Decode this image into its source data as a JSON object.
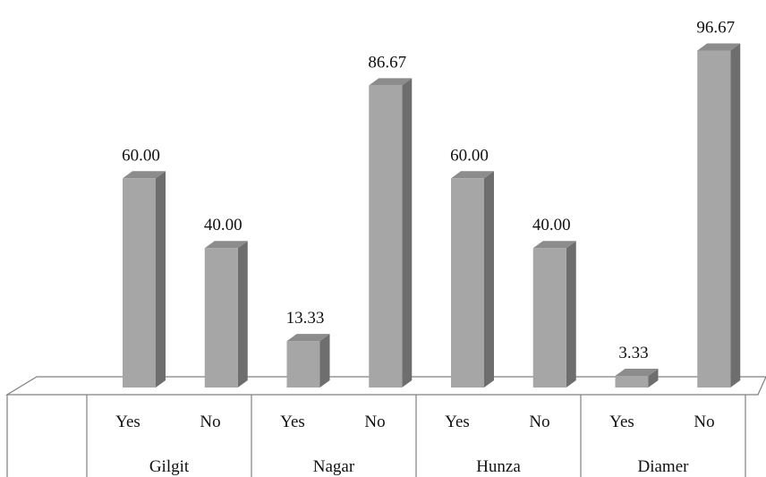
{
  "chart_data": {
    "type": "bar",
    "style": "3d-column",
    "groups": [
      {
        "name": "Gilgit",
        "categories": [
          "Yes",
          "No"
        ],
        "values": [
          60.0,
          40.0
        ]
      },
      {
        "name": "Nagar",
        "categories": [
          "Yes",
          "No"
        ],
        "values": [
          13.33,
          86.67
        ]
      },
      {
        "name": "Hunza",
        "categories": [
          "Yes",
          "No"
        ],
        "values": [
          60.0,
          40.0
        ]
      },
      {
        "name": "Diamer",
        "categories": [
          "Yes",
          "No"
        ],
        "values": [
          3.33,
          96.67
        ]
      }
    ],
    "data_labels": [
      "60.00",
      "40.00",
      "13.33",
      "86.67",
      "60.00",
      "40.00",
      "3.33",
      "96.67",
      ""
    ],
    "ylim": [
      0,
      100
    ],
    "grid": false,
    "legend": "none",
    "colors": {
      "front": "#a6a6a6",
      "side": "#6e6e6e",
      "top": "#8c8c8c",
      "floor_line": "#808080",
      "table_line": "#808080"
    }
  }
}
